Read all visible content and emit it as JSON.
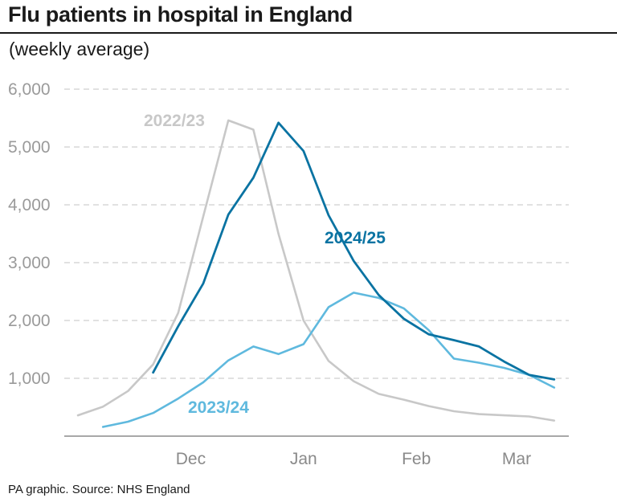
{
  "title": "Flu patients in hospital in England",
  "subtitle": "(weekly average)",
  "source": "PA graphic. Source: NHS England",
  "chart_data": {
    "type": "line",
    "title": "Flu patients in hospital in England",
    "subtitle": "(weekly average)",
    "xlabel": "",
    "ylabel": "",
    "ylim": [
      0,
      6000
    ],
    "yticks": [
      1000,
      2000,
      3000,
      4000,
      5000,
      6000
    ],
    "ytick_labels": [
      "1,000",
      "2,000",
      "3,000",
      "4,000",
      "5,000",
      "6,000"
    ],
    "x_ticks": [
      {
        "label": "Dec",
        "week": 4.5
      },
      {
        "label": "Jan",
        "week": 9
      },
      {
        "label": "Feb",
        "week": 13.5
      },
      {
        "label": "Mar",
        "week": 17.5
      }
    ],
    "grid": true,
    "legend": "inline labels",
    "series": [
      {
        "name": "2022/23",
        "color": "#c8c8c8",
        "x": [
          0,
          1,
          2,
          3,
          4,
          5,
          6,
          7,
          8,
          9,
          10,
          11,
          12,
          13,
          14,
          15,
          16,
          17,
          18,
          19
        ],
        "values": [
          360,
          510,
          780,
          1240,
          2130,
          3800,
          5460,
          5300,
          3500,
          2000,
          1300,
          950,
          730,
          630,
          520,
          430,
          380,
          360,
          340,
          270
        ]
      },
      {
        "name": "2023/24",
        "color": "#5fb9de",
        "x": [
          1,
          2,
          3,
          4,
          5,
          6,
          7,
          8,
          9,
          10,
          11,
          12,
          13,
          14,
          15,
          16,
          17,
          18,
          19
        ],
        "values": [
          160,
          250,
          400,
          650,
          930,
          1310,
          1550,
          1420,
          1590,
          2230,
          2480,
          2390,
          2210,
          1830,
          1340,
          1270,
          1180,
          1060,
          840
        ]
      },
      {
        "name": "2024/25",
        "color": "#0a73a2",
        "x": [
          3,
          4,
          5,
          6,
          7,
          8,
          9,
          10,
          11,
          12,
          13,
          14,
          15,
          16,
          17,
          18,
          19
        ],
        "values": [
          1100,
          1900,
          2640,
          3830,
          4470,
          5420,
          4930,
          3820,
          3030,
          2440,
          2030,
          1760,
          1660,
          1550,
          1290,
          1060,
          980
        ]
      }
    ]
  }
}
